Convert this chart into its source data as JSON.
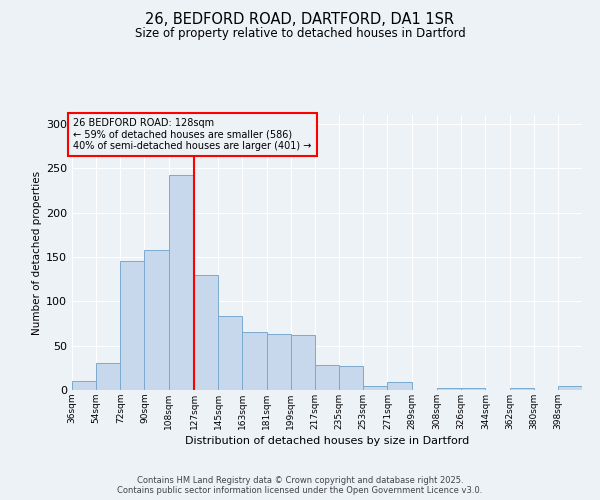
{
  "title1": "26, BEDFORD ROAD, DARTFORD, DA1 1SR",
  "title2": "Size of property relative to detached houses in Dartford",
  "xlabel": "Distribution of detached houses by size in Dartford",
  "ylabel": "Number of detached properties",
  "footer1": "Contains HM Land Registry data © Crown copyright and database right 2025.",
  "footer2": "Contains public sector information licensed under the Open Government Licence v3.0.",
  "annotation_title": "26 BEDFORD ROAD: 128sqm",
  "annotation_line2": "← 59% of detached houses are smaller (586)",
  "annotation_line3": "40% of semi-detached houses are larger (401) →",
  "bar_color": "#c8d8ec",
  "bar_edge_color": "#7aaace",
  "vline_x": 127,
  "vline_color": "red",
  "background_color": "#edf2f7",
  "categories": [
    "36sqm",
    "54sqm",
    "72sqm",
    "90sqm",
    "108sqm",
    "127sqm",
    "145sqm",
    "163sqm",
    "181sqm",
    "199sqm",
    "217sqm",
    "235sqm",
    "253sqm",
    "271sqm",
    "289sqm",
    "308sqm",
    "326sqm",
    "344sqm",
    "362sqm",
    "380sqm",
    "398sqm"
  ],
  "values": [
    10,
    30,
    145,
    158,
    242,
    130,
    83,
    65,
    63,
    62,
    28,
    27,
    5,
    9,
    0,
    2,
    2,
    0,
    2,
    0,
    4
  ],
  "bin_edges": [
    36,
    54,
    72,
    90,
    108,
    127,
    145,
    163,
    181,
    199,
    217,
    235,
    253,
    271,
    289,
    308,
    326,
    344,
    362,
    380,
    398,
    416
  ],
  "ylim": [
    0,
    310
  ],
  "yticks": [
    0,
    50,
    100,
    150,
    200,
    250,
    300
  ]
}
